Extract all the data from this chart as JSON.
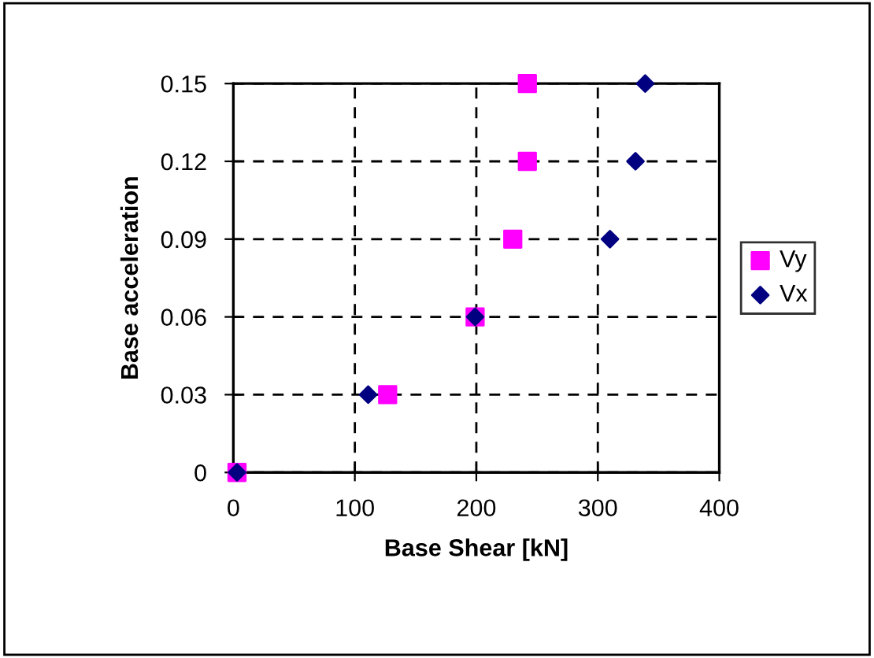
{
  "chart_data": {
    "type": "scatter",
    "xlabel": "Base Shear [kN]",
    "ylabel": "Base acceleration",
    "xlim": [
      0,
      400
    ],
    "ylim": [
      0,
      0.15
    ],
    "xticks": [
      0,
      100,
      200,
      300,
      400
    ],
    "yticks": [
      {
        "value": 0,
        "label": "0"
      },
      0.03,
      0.06,
      0.09,
      0.12,
      0.15
    ],
    "grid": true,
    "legend": "right",
    "series": [
      {
        "name": "Vy",
        "color": "#ff00ff",
        "marker": "square",
        "x": [
          3,
          127,
          199,
          230,
          242,
          242
        ],
        "values": [
          0,
          0.03,
          0.06,
          0.09,
          0.12,
          0.15
        ]
      },
      {
        "name": "Vx",
        "color": "#000080",
        "marker": "diamond",
        "x": [
          3,
          111,
          199,
          310,
          331,
          339
        ],
        "values": [
          0,
          0.03,
          0.06,
          0.09,
          0.12,
          0.15
        ]
      }
    ]
  }
}
